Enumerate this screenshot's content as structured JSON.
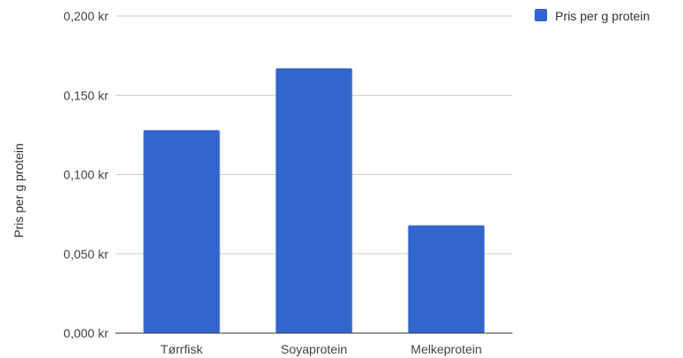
{
  "chart_data": {
    "type": "bar",
    "categories": [
      "Tørrfisk",
      "Soyaprotein",
      "Melkeprotein"
    ],
    "series": [
      {
        "name": "Pris per g protein",
        "values": [
          0.128,
          0.167,
          0.068
        ],
        "color": "#3366cc"
      }
    ],
    "title": "",
    "xlabel": "",
    "ylabel": "Pris per g protein",
    "ylim": [
      0,
      0.2
    ],
    "yticks": [
      0,
      0.05,
      0.1,
      0.15,
      0.2
    ],
    "ytick_labels": [
      "0,000 kr",
      "0,050 kr",
      "0,100 kr",
      "0,150 kr",
      "0,200 kr"
    ],
    "grid": true,
    "legend_position": "top-right",
    "colors": {
      "gridline": "#cccccc",
      "baseline": "#333333"
    }
  }
}
